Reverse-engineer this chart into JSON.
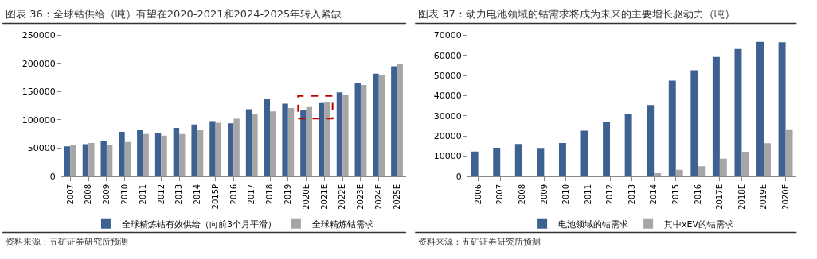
{
  "chart_data": [
    {
      "type": "bar",
      "title": "图表 36：全球钴供给（吨）有望在2020-2021和2024-2025年转入紧缺",
      "categories": [
        "2007",
        "2008",
        "2009",
        "2010",
        "2011",
        "2012",
        "2013",
        "2014",
        "2015P",
        "2016",
        "2017",
        "2018",
        "2019",
        "2020E",
        "2021E",
        "2022E",
        "2023E",
        "2024E",
        "2025E"
      ],
      "series": [
        {
          "name": "全球精炼钴有效供给（向前3个月平滑）",
          "color": "#3d6190",
          "values": [
            53000,
            57000,
            62000,
            79000,
            82000,
            77000,
            86000,
            92000,
            98000,
            94000,
            119000,
            138000,
            129000,
            118000,
            130000,
            149000,
            165000,
            182000,
            195000
          ]
        },
        {
          "name": "全球精炼钴需求",
          "color": "#a6a6a6",
          "values": [
            56000,
            59000,
            56000,
            61000,
            75000,
            72000,
            75000,
            82000,
            95000,
            102000,
            110000,
            115000,
            121000,
            123000,
            132000,
            145000,
            162000,
            180000,
            199000
          ]
        }
      ],
      "ylim": [
        0,
        250000
      ],
      "yticks": [
        0,
        50000,
        100000,
        150000,
        200000,
        250000
      ],
      "legend": "bottom",
      "annotations": [
        "资料来源：五矿证券研究所预测"
      ]
    },
    {
      "type": "bar",
      "title": "图表 37：动力电池领域的钴需求将成为未来的主要增长驱动力（吨）",
      "categories": [
        "2006",
        "2007",
        "2008",
        "2009",
        "2010",
        "2011",
        "2012",
        "2013",
        "2014",
        "2015",
        "2016",
        "2017E",
        "2018E",
        "2019E",
        "2020E"
      ],
      "series": [
        {
          "name": "电池领域的钴需求",
          "color": "#3d6190",
          "values": [
            12300,
            14200,
            16100,
            14100,
            16600,
            22700,
            27200,
            30800,
            35400,
            47500,
            52600,
            59300,
            63200,
            66700,
            66500
          ]
        },
        {
          "name": "其中xEV的钴需求",
          "color": "#a6a6a6",
          "values": [
            null,
            null,
            null,
            null,
            null,
            null,
            null,
            null,
            1600,
            3200,
            5000,
            8800,
            12200,
            16500,
            23400
          ]
        }
      ],
      "ylim": [
        0,
        70000
      ],
      "yticks": [
        0,
        10000,
        20000,
        30000,
        40000,
        50000,
        60000,
        70000
      ],
      "legend": "bottom",
      "annotations": [
        "资料来源：五矿证券研究所预测"
      ]
    }
  ]
}
